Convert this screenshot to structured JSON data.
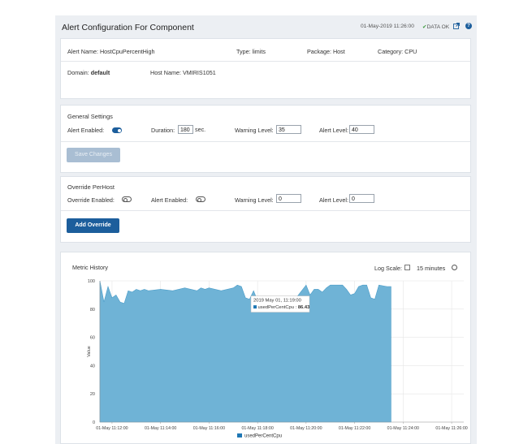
{
  "header": {
    "title": "Alert Configuration For Component",
    "timestamp": "01-May-2019 11:26:00",
    "status": "DATA OK"
  },
  "info": {
    "alert_name_label": "Alert Name:",
    "alert_name": "HostCpuPercentHigh",
    "type_label": "Type:",
    "type": "limits",
    "package_label": "Package:",
    "package": "Host",
    "category_label": "Category:",
    "category": "CPU",
    "domain_label": "Domain:",
    "domain": "default",
    "host_label": "Host Name:",
    "host": "VMIRIS1051"
  },
  "general": {
    "title": "General Settings",
    "alert_enabled_label": "Alert Enabled:",
    "alert_enabled": true,
    "duration_label": "Duration:",
    "duration": "180",
    "duration_unit": "sec.",
    "warning_label": "Warning Level:",
    "warning": "35",
    "alert_level_label": "Alert Level:",
    "alert_level": "40",
    "save_label": "Save Changes"
  },
  "override": {
    "title": "Override PerHost",
    "override_enabled_label": "Override Enabled:",
    "override_enabled": false,
    "alert_enabled_label": "Alert Enabled:",
    "alert_enabled": false,
    "warning_label": "Warning Level:",
    "warning": "0",
    "alert_level_label": "Alert Level:",
    "alert_level": "0",
    "add_label": "Add Override"
  },
  "metric": {
    "title": "Metric History",
    "log_scale_label": "Log Scale:",
    "log_scale": false,
    "range": "15 minutes",
    "tooltip_time": "2019 May 01, 11:19:00",
    "tooltip_series": "usedPerCentCpu",
    "tooltip_value": "86.43"
  },
  "colors": {
    "area": "#6fb3d6",
    "series": "#1f77b4",
    "primary": "#1c5e9c"
  },
  "chart_data": {
    "type": "area",
    "ylabel": "Value",
    "ylim": [
      0,
      100
    ],
    "yticks": [
      0,
      20,
      40,
      60,
      80,
      100
    ],
    "xticks": [
      "01-May 11:12:00",
      "01-May 11:14:00",
      "01-May 11:16:00",
      "01-May 11:18:00",
      "01-May 11:20:00",
      "01-May 11:22:00",
      "01-May 11:24:00",
      "01-May 11:26:00"
    ],
    "x_start_min": 11.5,
    "x_end_min": 26.5,
    "grid": true,
    "legend": "bottom",
    "series": [
      {
        "name": "usedPerCentCpu",
        "times": [
          "11:11:30",
          "11:11:40",
          "11:11:50",
          "11:12:00",
          "11:12:10",
          "11:12:20",
          "11:12:30",
          "11:12:40",
          "11:12:50",
          "11:13:00",
          "11:13:10",
          "11:13:20",
          "11:13:30",
          "11:14:00",
          "11:14:30",
          "11:15:00",
          "11:15:30",
          "11:15:40",
          "11:15:50",
          "11:16:00",
          "11:16:30",
          "11:17:00",
          "11:17:10",
          "11:17:20",
          "11:17:30",
          "11:17:40",
          "11:17:50",
          "11:18:00",
          "11:18:30",
          "11:19:00",
          "11:19:30",
          "11:20:00",
          "11:20:10",
          "11:20:20",
          "11:20:30",
          "11:20:40",
          "11:20:50",
          "11:21:00",
          "11:21:30",
          "11:21:40",
          "11:21:50",
          "11:22:00",
          "11:22:10",
          "11:22:20",
          "11:22:30",
          "11:22:40",
          "11:22:50",
          "11:23:00",
          "11:23:20",
          "11:23:30"
        ],
        "values": [
          100,
          85,
          96,
          88,
          90,
          85,
          84,
          93,
          92,
          94,
          93,
          94,
          93,
          94,
          93,
          95,
          93,
          95,
          94,
          95,
          93,
          95,
          97,
          96,
          88,
          87,
          93,
          86,
          86,
          86,
          86,
          97,
          90,
          94,
          94,
          92,
          95,
          97,
          97,
          94,
          90,
          91,
          96,
          97,
          97,
          88,
          87,
          97,
          96,
          96
        ]
      }
    ]
  }
}
